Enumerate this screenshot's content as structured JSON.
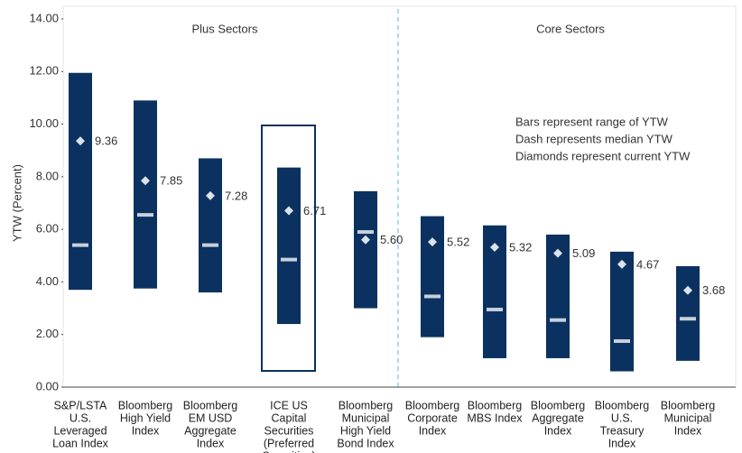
{
  "chart_data": {
    "type": "range",
    "y_label": "YTW (Percent)",
    "annotations": [
      "Plus Sectors",
      "Core Sectors"
    ],
    "notes": [
      "Bars represent range of YTW",
      "Dash represents median YTW",
      "Diamonds represent current YTW"
    ],
    "categories": [
      [
        "S&P/LSTA",
        "U.S.",
        "Leveraged",
        "Loan Index"
      ],
      [
        "Bloomberg",
        "High Yield",
        "Index"
      ],
      [
        "Bloomberg",
        "EM USD",
        "Aggregate",
        "Index"
      ],
      [
        "ICE US",
        "Capital",
        "Securities",
        "(Preferred",
        "Securities)"
      ],
      [
        "Bloomberg",
        "Municipal",
        "High Yield",
        "Bond Index"
      ],
      [
        "Bloomberg",
        "Corporate",
        "Index"
      ],
      [
        "Bloomberg",
        "MBS Index"
      ],
      [
        "Bloomberg",
        "Aggregate",
        "Index"
      ],
      [
        "Bloomberg",
        "U.S.",
        "Treasury",
        "Index"
      ],
      [
        "Bloomberg",
        "Municipal",
        "Index"
      ]
    ],
    "low": [
      3.7,
      3.75,
      3.6,
      2.4,
      3.0,
      1.9,
      1.1,
      1.1,
      0.6,
      1.0
    ],
    "high": [
      11.95,
      10.9,
      8.7,
      8.35,
      7.45,
      6.5,
      6.15,
      5.8,
      5.15,
      4.6
    ],
    "median": [
      5.4,
      6.55,
      5.4,
      4.85,
      5.9,
      3.45,
      2.95,
      2.55,
      1.75,
      2.6
    ],
    "current": {
      "values": [
        9.36,
        7.85,
        7.28,
        6.71,
        5.6,
        5.52,
        5.32,
        5.09,
        4.67,
        3.68
      ],
      "value_labels": [
        "9.36",
        "7.85",
        "7.28",
        "6.71",
        "5.60",
        "5.52",
        "5.32",
        "5.09",
        "4.67",
        "3.68"
      ]
    },
    "bar_color": "#0b3160",
    "median_color": "#c7d0dc",
    "marker_color": "#dce2ea",
    "ylim": [
      0,
      14
    ],
    "yticks": [
      {
        "value": 0,
        "label": "0.00"
      },
      {
        "value": 2,
        "label": "2.00"
      },
      {
        "value": 4,
        "label": "4.00"
      },
      {
        "value": 6,
        "label": "6.00"
      },
      {
        "value": 8,
        "label": "8.00"
      },
      {
        "value": 10,
        "label": "10.00"
      },
      {
        "value": 12,
        "label": "12.00"
      },
      {
        "value": 14,
        "label": "14.00"
      }
    ]
  }
}
